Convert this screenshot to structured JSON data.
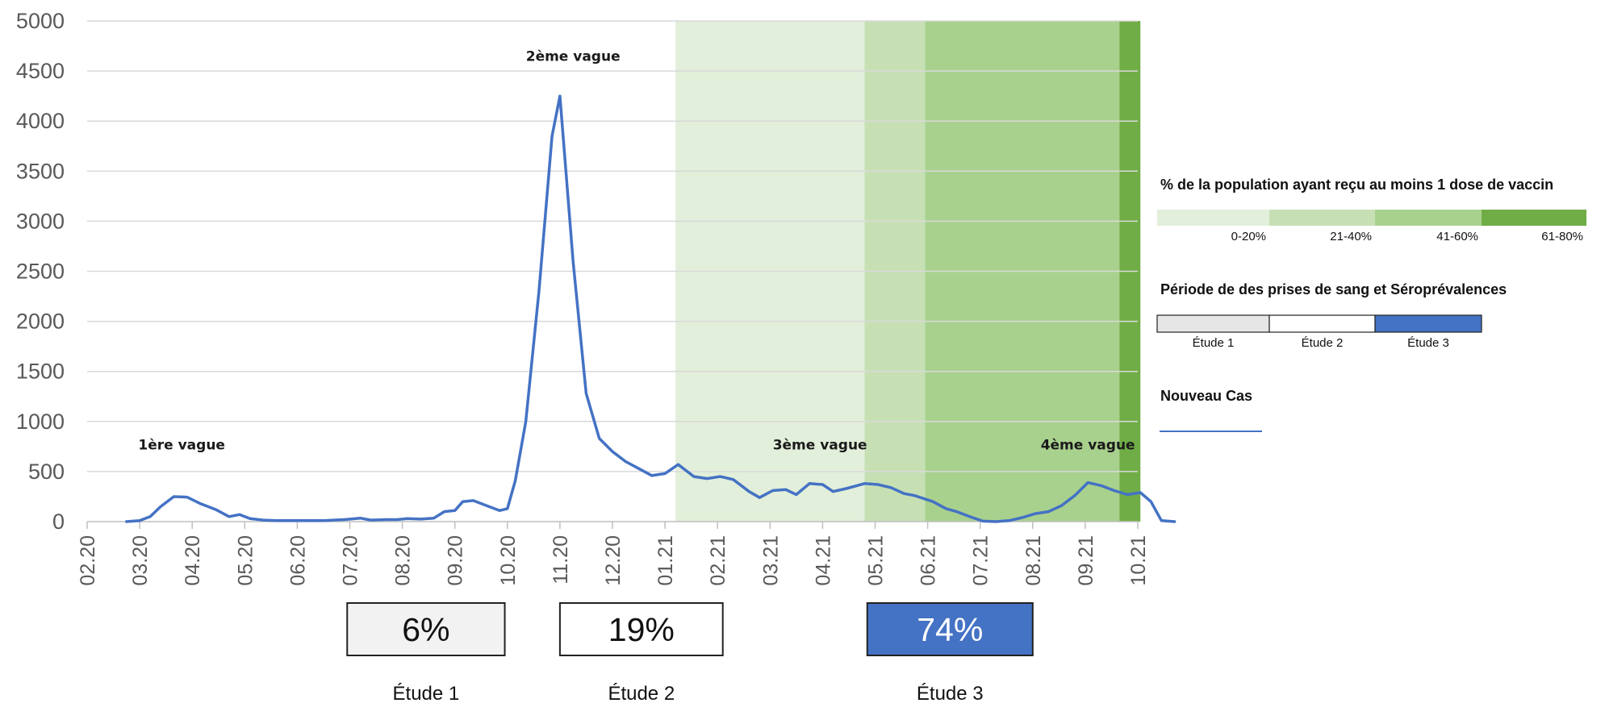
{
  "chart_data": {
    "type": "line",
    "ylim": [
      0,
      5000
    ],
    "yticks": [
      "5000",
      "4500",
      "4000",
      "3500",
      "3000",
      "2500",
      "2000",
      "1500",
      "1000",
      "500",
      "0"
    ],
    "xticks": [
      "02.20",
      "03.20",
      "04.20",
      "05.20",
      "06.20",
      "07.20",
      "08.20",
      "09.20",
      "10.20",
      "11.20",
      "12.20",
      "01.21",
      "02.21",
      "03.21",
      "04.21",
      "05.21",
      "06.21",
      "07.21",
      "08.21",
      "09.21",
      "10.21"
    ],
    "grid": true,
    "series": [
      {
        "name": "Nouveau Cas",
        "color": "#4472C4",
        "values": [
          [
            0.75,
            0
          ],
          [
            1.0,
            10
          ],
          [
            1.2,
            50
          ],
          [
            1.4,
            150
          ],
          [
            1.65,
            250
          ],
          [
            1.9,
            245
          ],
          [
            2.15,
            180
          ],
          [
            2.45,
            120
          ],
          [
            2.7,
            50
          ],
          [
            2.9,
            70
          ],
          [
            3.1,
            30
          ],
          [
            3.35,
            15
          ],
          [
            3.6,
            10
          ],
          [
            4.0,
            10
          ],
          [
            4.5,
            10
          ],
          [
            4.9,
            20
          ],
          [
            5.2,
            35
          ],
          [
            5.4,
            15
          ],
          [
            5.7,
            20
          ],
          [
            5.9,
            20
          ],
          [
            6.1,
            30
          ],
          [
            6.35,
            25
          ],
          [
            6.6,
            35
          ],
          [
            6.8,
            100
          ],
          [
            7.0,
            110
          ],
          [
            7.15,
            200
          ],
          [
            7.35,
            210
          ],
          [
            7.6,
            160
          ],
          [
            7.85,
            110
          ],
          [
            8.0,
            130
          ],
          [
            8.15,
            410
          ],
          [
            8.35,
            1000
          ],
          [
            8.6,
            2300
          ],
          [
            8.85,
            3850
          ],
          [
            9.0,
            4250
          ],
          [
            9.25,
            2600
          ],
          [
            9.5,
            1280
          ],
          [
            9.75,
            830
          ],
          [
            10.0,
            700
          ],
          [
            10.25,
            600
          ],
          [
            10.5,
            530
          ],
          [
            10.75,
            460
          ],
          [
            11.0,
            480
          ],
          [
            11.25,
            570
          ],
          [
            11.55,
            450
          ],
          [
            11.8,
            430
          ],
          [
            12.05,
            450
          ],
          [
            12.3,
            420
          ],
          [
            12.6,
            300
          ],
          [
            12.8,
            240
          ],
          [
            13.05,
            310
          ],
          [
            13.3,
            320
          ],
          [
            13.5,
            270
          ],
          [
            13.75,
            380
          ],
          [
            14.0,
            370
          ],
          [
            14.2,
            300
          ],
          [
            14.45,
            330
          ],
          [
            14.8,
            380
          ],
          [
            15.05,
            370
          ],
          [
            15.3,
            340
          ],
          [
            15.55,
            280
          ],
          [
            15.75,
            260
          ],
          [
            16.1,
            200
          ],
          [
            16.35,
            130
          ],
          [
            16.55,
            100
          ],
          [
            16.8,
            50
          ],
          [
            17.05,
            5
          ],
          [
            17.3,
            0
          ],
          [
            17.55,
            10
          ],
          [
            17.8,
            40
          ],
          [
            18.05,
            80
          ],
          [
            18.3,
            100
          ],
          [
            18.55,
            160
          ],
          [
            18.8,
            260
          ],
          [
            19.05,
            390
          ],
          [
            19.3,
            360
          ],
          [
            19.55,
            310
          ],
          [
            19.8,
            270
          ],
          [
            20.05,
            290
          ],
          [
            20.25,
            200
          ],
          [
            20.45,
            10
          ],
          [
            20.7,
            0
          ]
        ]
      }
    ],
    "vaccination_bands": [
      {
        "from": 11.2,
        "to": 14.8,
        "range": "0-20%",
        "color": "#E2EFDA"
      },
      {
        "from": 14.8,
        "to": 15.95,
        "range": "21-40%",
        "color": "#C6E0B4"
      },
      {
        "from": 15.95,
        "to": 19.65,
        "range": "41-60%",
        "color": "#A9D18E"
      },
      {
        "from": 19.65,
        "to": 20.05,
        "range": "61-80%",
        "color": "#70AD47"
      }
    ],
    "waves": [
      {
        "label": "1ère vague",
        "x": 1.8,
        "y": 720
      },
      {
        "label": "2ème vague",
        "x": 9.25,
        "y": 4600
      },
      {
        "label": "3ème vague",
        "x": 13.95,
        "y": 720
      },
      {
        "label": "4ème vague",
        "x": 19.05,
        "y": 720
      }
    ]
  },
  "studies": [
    {
      "label": "Étude 1",
      "value": "6%",
      "from": 4.95,
      "to": 7.95,
      "fill": "#F2F2F2",
      "text_color": "#111111"
    },
    {
      "label": "Étude 2",
      "value": "19%",
      "from": 9.0,
      "to": 12.1,
      "fill": "#FFFFFF",
      "text_color": "#111111"
    },
    {
      "label": "Étude 3",
      "value": "74%",
      "from": 14.85,
      "to": 18.0,
      "fill": "#4472C4",
      "text_color": "#FFFFFF"
    }
  ],
  "legend": {
    "vaccine_title": "% de la population ayant reçu au moins 1 dose de vaccin",
    "vaccine_items": [
      {
        "label": "0-20%",
        "color": "#E2EFDA"
      },
      {
        "label": "21-40%",
        "color": "#C6E0B4"
      },
      {
        "label": "41-60%",
        "color": "#A9D18E"
      },
      {
        "label": "61-80%",
        "color": "#70AD47"
      }
    ],
    "period_title": "Période de des prises de sang et Séroprévalences",
    "period_items": [
      {
        "label": "Étude 1",
        "color": "#E7E6E6"
      },
      {
        "label": "Étude 2",
        "color": "#FFFFFF"
      },
      {
        "label": "Étude 3",
        "color": "#4472C4"
      }
    ],
    "cases_title": "Nouveau Cas",
    "cases_color": "#4472C4"
  }
}
